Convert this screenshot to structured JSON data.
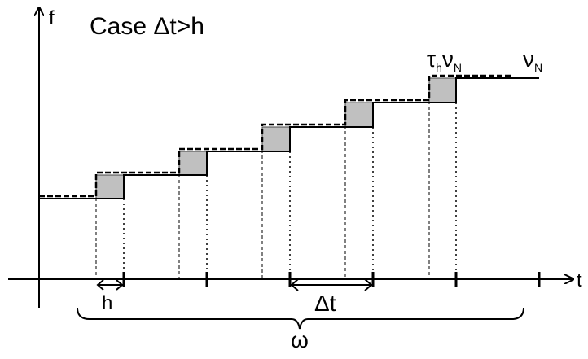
{
  "title": "Case Δt>h",
  "axes": {
    "y_label": "f",
    "x_label": "t"
  },
  "annotations": {
    "h_label": "h",
    "delta_t_label": "Δt",
    "omega_label": "ω",
    "tau_symbol": "τ",
    "tau_subscript": "h",
    "nu_symbol": "ν",
    "nu_subscript": "N",
    "nu_end_symbol": "ν",
    "nu_end_subscript": "N"
  },
  "colors": {
    "line": "#000000",
    "shaded_box_fill": "#c0c0c0",
    "shaded_box_stroke": "#444444"
  }
}
